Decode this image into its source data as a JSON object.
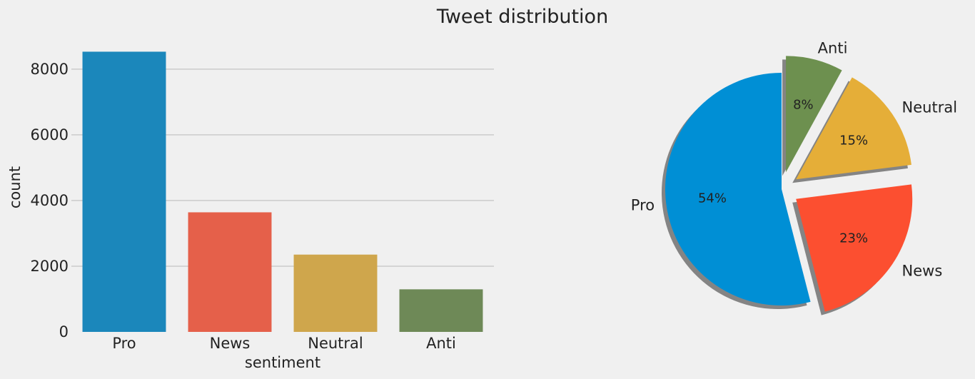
{
  "figure": {
    "title": "Tweet distribution"
  },
  "chart_data": [
    {
      "type": "bar",
      "categories": [
        "Pro",
        "News",
        "Neutral",
        "Anti"
      ],
      "values": [
        8530,
        3640,
        2353,
        1296
      ],
      "colors": [
        "#1b87bb",
        "#e5604a",
        "#cfa64c",
        "#6e8957"
      ],
      "xlabel": "sentiment",
      "ylabel": "count",
      "ylim": [
        0,
        8800
      ],
      "yticks": [
        0,
        2000,
        4000,
        6000,
        8000
      ],
      "ytick_labels": [
        "0",
        "2000",
        "4000",
        "6000",
        "8000"
      ],
      "grid": true
    },
    {
      "type": "pie",
      "labels": [
        "Pro",
        "News",
        "Neutral",
        "Anti"
      ],
      "values": [
        54,
        23,
        15,
        8
      ],
      "pct_labels": [
        "54%",
        "23%",
        "15%",
        "8%"
      ],
      "colors": [
        "#008fd5",
        "#fc4f30",
        "#e5ae38",
        "#6d904f"
      ],
      "explode": [
        0,
        0.15,
        0.15,
        0.15
      ],
      "shadow": true,
      "start_angle_deg": 90
    }
  ]
}
